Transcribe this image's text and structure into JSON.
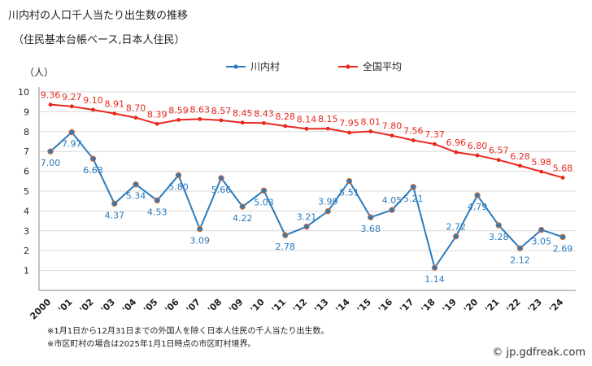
{
  "header": {
    "title": "川内村の人口千人当たり出生数の推移",
    "subtitle": "（住民基本台帳ベース,日本人住民）"
  },
  "notes": [
    "※1月1日から12月31日までの外国人を除く日本人住民の千人当たり出生数。",
    "※市区町村の場合は2025年1月1日時点の市区町村境界。"
  ],
  "credit": "© jp.gdfreak.com",
  "colors": {
    "local": "#2a7bbd",
    "national": "#e8271e",
    "local_marker": "#e06a2a"
  },
  "chart_data": {
    "type": "line",
    "ylabel": "（人）",
    "ylim": [
      0,
      10
    ],
    "yticks": [
      1,
      2,
      3,
      4,
      5,
      6,
      7,
      8,
      9,
      10
    ],
    "categories": [
      "2000",
      "'01",
      "'02",
      "'03",
      "'04",
      "'05",
      "'06",
      "'07",
      "'08",
      "'09",
      "'10",
      "'11",
      "'12",
      "'13",
      "'14",
      "'15",
      "'16",
      "'17",
      "'18",
      "'19",
      "'20",
      "'21",
      "'22",
      "'23",
      "'24"
    ],
    "legend_position": "top",
    "series": [
      {
        "name": "川内村",
        "values": [
          7.0,
          7.97,
          6.63,
          4.37,
          5.34,
          4.53,
          5.8,
          3.09,
          5.66,
          4.22,
          5.03,
          2.78,
          3.21,
          3.99,
          5.51,
          3.68,
          4.05,
          5.21,
          1.14,
          2.72,
          4.79,
          3.28,
          2.12,
          3.05,
          2.69
        ],
        "labels": [
          "7.00",
          "7.97",
          "6.63",
          "4.37",
          "5.34",
          "4.53",
          "5.80",
          "3.09",
          "5.66",
          "4.22",
          "5.03",
          "2.78",
          "3.21",
          "3.99",
          "5.51",
          "3.68",
          "4.05",
          "5.21",
          "1.14",
          "2.72",
          "4.79",
          "3.28",
          "2.12",
          "3.05",
          "2.69"
        ]
      },
      {
        "name": "全国平均",
        "values": [
          9.36,
          9.27,
          9.1,
          8.91,
          8.7,
          8.39,
          8.59,
          8.63,
          8.57,
          8.45,
          8.43,
          8.28,
          8.14,
          8.15,
          7.95,
          8.01,
          7.8,
          7.56,
          7.37,
          6.96,
          6.8,
          6.57,
          6.28,
          5.98,
          5.68
        ],
        "labels": [
          "9.36",
          "9.27",
          "9.10",
          "8.91",
          "8.70",
          "8.39",
          "8.59",
          "8.63",
          "8.57",
          "8.45",
          "8.43",
          "8.28",
          "8.14",
          "8.15",
          "7.95",
          "8.01",
          "7.80",
          "7.56",
          "7.37",
          "6.96",
          "6.80",
          "6.57",
          "6.28",
          "5.98",
          "5.68"
        ]
      }
    ]
  }
}
